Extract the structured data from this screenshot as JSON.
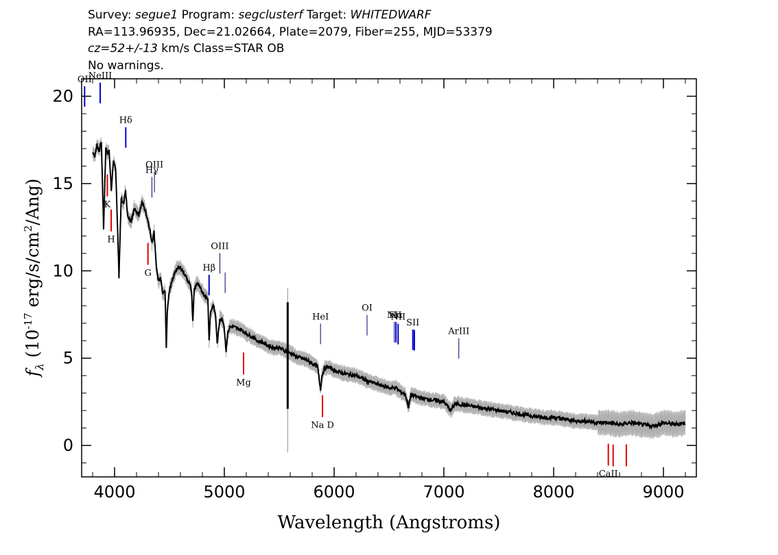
{
  "header": {
    "survey_label": "Survey:",
    "survey": "segue1",
    "program_label": "Program:",
    "program": "segclusterf",
    "target_label": "Target:",
    "target": "WHITEDWARF",
    "coords": "RA=113.96935, Dec=21.02664, Plate=2079, Fiber=255, MJD=53379",
    "cz_value": "cz=52+/-13",
    "cz_units": "km/s Class=STAR OB",
    "warnings": "No warnings."
  },
  "chart_data": {
    "type": "line",
    "xlabel": "Wavelength (Angstroms)",
    "ylabel_prefix": "f",
    "ylabel_sub": "λ",
    "ylabel_units": "(10",
    "ylabel_exp": "-17",
    "ylabel_rest": "erg/s/cm",
    "ylabel_exp2": "2",
    "ylabel_end": "/Ang)",
    "xlim": [
      3700,
      9300
    ],
    "ylim": [
      -1.8,
      21
    ],
    "xticks": [
      4000,
      5000,
      6000,
      7000,
      8000,
      9000
    ],
    "yticks": [
      0,
      5,
      10,
      15,
      20
    ],
    "grid": false,
    "colors": {
      "flux": "#000000",
      "error": "#b0b0b0",
      "emission": "#0000cc",
      "absorption": "#dd0000",
      "sky": "#000000"
    },
    "spectrum": {
      "x": [
        3800,
        3820,
        3840,
        3860,
        3880,
        3900,
        3920,
        3935,
        3950,
        3970,
        3990,
        4010,
        4030,
        4040,
        4060,
        4080,
        4100,
        4120,
        4150,
        4180,
        4220,
        4250,
        4280,
        4300,
        4320,
        4340,
        4360,
        4380,
        4400,
        4420,
        4440,
        4460,
        4471,
        4480,
        4500,
        4530,
        4560,
        4600,
        4640,
        4680,
        4700,
        4713,
        4725,
        4750,
        4780,
        4820,
        4850,
        4861,
        4875,
        4900,
        4921,
        4935,
        4960,
        4990,
        5000,
        5016,
        5030,
        5050,
        5080,
        5120,
        5160,
        5200,
        5260,
        5300,
        5350,
        5400,
        5450,
        5500,
        5560,
        5600,
        5650,
        5700,
        5750,
        5800,
        5850,
        5876,
        5890,
        5910,
        5950,
        6000,
        6100,
        6200,
        6300,
        6400,
        6500,
        6563,
        6600,
        6650,
        6678,
        6700,
        6750,
        6800,
        6900,
        7000,
        7065,
        7100,
        7200,
        7300,
        7400,
        7500,
        7600,
        7700,
        7800,
        7900,
        8000,
        8100,
        8200,
        8300,
        8400,
        8500,
        8600,
        8700,
        8800,
        8900,
        9000,
        9100,
        9200
      ],
      "y": [
        16.8,
        16.6,
        17.2,
        16.9,
        17.4,
        12.4,
        17.0,
        16.7,
        16.9,
        14.6,
        16.3,
        15.8,
        12.0,
        9.6,
        14.2,
        13.8,
        14.6,
        13.1,
        12.8,
        13.6,
        13.2,
        13.9,
        13.5,
        12.9,
        12.4,
        11.6,
        12.2,
        10.2,
        9.4,
        9.6,
        8.6,
        8.9,
        5.6,
        7.7,
        8.9,
        9.5,
        10.1,
        10.2,
        9.8,
        9.3,
        8.9,
        7.1,
        8.9,
        9.3,
        9.0,
        8.6,
        8.4,
        6.0,
        7.7,
        8.0,
        7.4,
        5.8,
        7.3,
        7.1,
        6.7,
        5.4,
        6.4,
        6.8,
        6.8,
        6.7,
        6.6,
        6.4,
        6.2,
        6.0,
        5.9,
        5.7,
        5.6,
        5.6,
        5.4,
        5.3,
        5.1,
        5.0,
        4.9,
        4.7,
        4.5,
        3.2,
        4.0,
        4.4,
        4.5,
        4.3,
        4.1,
        4.0,
        3.7,
        3.5,
        3.3,
        3.3,
        3.1,
        2.9,
        2.2,
        2.9,
        2.8,
        2.7,
        2.6,
        2.5,
        2.0,
        2.4,
        2.3,
        2.2,
        2.1,
        2.0,
        1.9,
        1.8,
        1.7,
        1.6,
        1.6,
        1.5,
        1.4,
        1.4,
        1.3,
        1.3,
        1.2,
        1.3,
        1.2,
        1.1,
        1.3,
        1.2,
        1.3
      ]
    },
    "sky_line": {
      "x": 5577,
      "y_low": 2.1,
      "y_high": 8.2,
      "y_error_low": -0.4,
      "y_error_high": 9.0
    },
    "emission_lines": [
      {
        "label": "OII",
        "x": 3727,
        "kind": "emission"
      },
      {
        "label": "NeIII",
        "x": 3869,
        "kind": "emission"
      },
      {
        "label": "Hδ",
        "x": 4102,
        "kind": "emission"
      },
      {
        "label": "Hγ",
        "x": 4340,
        "kind": "thin"
      },
      {
        "label": "OIII",
        "x": 4363,
        "kind": "thin"
      },
      {
        "label": "Hβ",
        "x": 4861,
        "kind": "emission"
      },
      {
        "label": "OIII",
        "x": 4959,
        "kind": "thin"
      },
      {
        "label": "",
        "x": 5007,
        "kind": "thin"
      },
      {
        "label": "HeI",
        "x": 5876,
        "kind": "thin"
      },
      {
        "label": "OI",
        "x": 6300,
        "kind": "thin"
      },
      {
        "label": "NII",
        "x": 6548,
        "kind": "thin"
      },
      {
        "label": "Hα",
        "x": 6563,
        "kind": "emission"
      },
      {
        "label": "NII",
        "x": 6583,
        "kind": "emission"
      },
      {
        "label": "SII",
        "x": 6717,
        "kind": "emission"
      },
      {
        "label": "",
        "x": 6731,
        "kind": "emission"
      },
      {
        "label": "ArIII",
        "x": 7136,
        "kind": "thin"
      }
    ],
    "absorption_lines": [
      {
        "label": "K",
        "x": 3934
      },
      {
        "label": "H",
        "x": 3969
      },
      {
        "label": "G",
        "x": 4304
      },
      {
        "label": "Mg",
        "x": 5175
      },
      {
        "label": "Na D",
        "x": 5894
      },
      {
        "label": "CaII",
        "x": 8498
      },
      {
        "label": "",
        "x": 8542
      },
      {
        "label": "",
        "x": 8662
      }
    ]
  }
}
